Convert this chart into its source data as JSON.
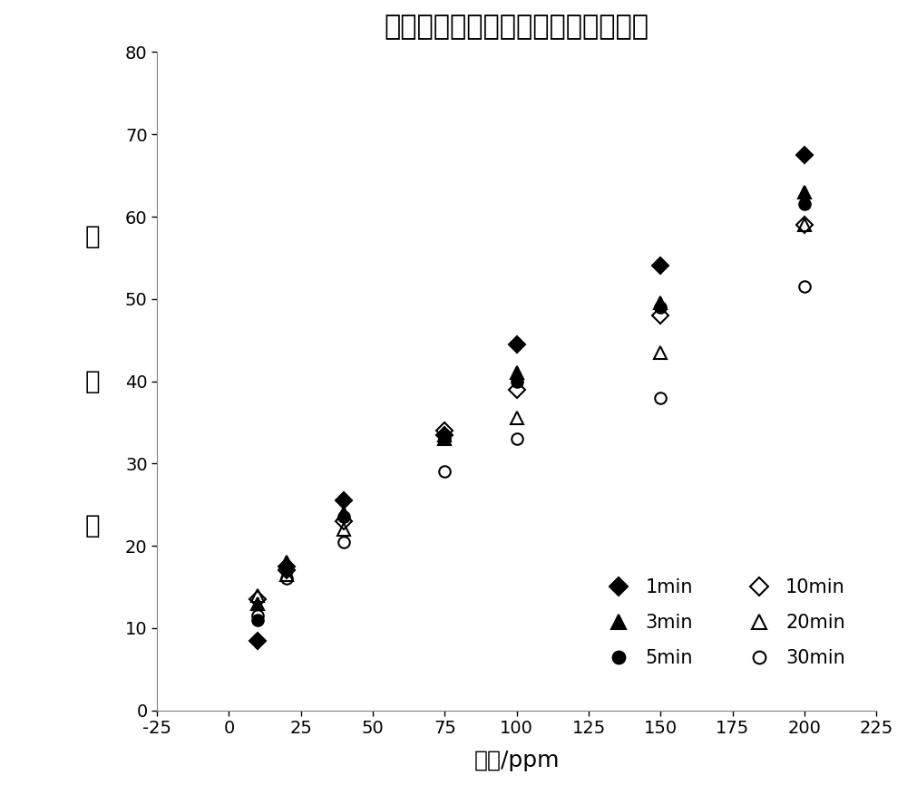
{
  "title": "不同显色时间下的标准溶液信号响应",
  "xlabel": "浓度/ppm",
  "ylabel": "灰度値",
  "xlim": [
    -25,
    225
  ],
  "ylim": [
    0,
    80
  ],
  "xticks": [
    -25,
    0,
    25,
    50,
    75,
    100,
    125,
    150,
    175,
    200,
    225
  ],
  "yticks": [
    0,
    10,
    20,
    30,
    40,
    50,
    60,
    70,
    80
  ],
  "series": [
    {
      "label": "1min",
      "marker": "D",
      "color": "#000000",
      "fillstyle": "full",
      "markersize": 9,
      "x": [
        10,
        20,
        40,
        75,
        100,
        150,
        200
      ],
      "y": [
        8.5,
        17.5,
        25.5,
        33.5,
        44.5,
        54,
        67.5
      ]
    },
    {
      "label": "3min",
      "marker": "^",
      "color": "#000000",
      "fillstyle": "full",
      "markersize": 10,
      "x": [
        10,
        20,
        40,
        75,
        100,
        150,
        200
      ],
      "y": [
        13,
        18,
        24,
        33,
        41,
        49.5,
        63
      ]
    },
    {
      "label": "5min",
      "marker": "o",
      "color": "#000000",
      "fillstyle": "full",
      "markersize": 9,
      "x": [
        10,
        20,
        40,
        75,
        100,
        150,
        200
      ],
      "y": [
        11,
        17,
        23.5,
        33,
        40,
        49,
        61.5
      ]
    },
    {
      "label": "10min",
      "marker": "D",
      "color": "#000000",
      "fillstyle": "none",
      "markersize": 9,
      "x": [
        10,
        20,
        40,
        75,
        100,
        150,
        200
      ],
      "y": [
        13.5,
        17,
        23,
        34,
        39,
        48,
        59
      ]
    },
    {
      "label": "20min",
      "marker": "^",
      "color": "#000000",
      "fillstyle": "none",
      "markersize": 10,
      "x": [
        10,
        20,
        40,
        75,
        100,
        150,
        200
      ],
      "y": [
        14,
        16.5,
        22,
        33.5,
        35.5,
        43.5,
        59
      ]
    },
    {
      "label": "30min",
      "marker": "o",
      "color": "#000000",
      "fillstyle": "none",
      "markersize": 9,
      "x": [
        10,
        20,
        40,
        75,
        100,
        150,
        200
      ],
      "y": [
        11.5,
        16,
        20.5,
        29,
        33,
        38,
        51.5
      ]
    }
  ],
  "background_color": "#ffffff",
  "title_fontsize": 22,
  "axis_fontsize": 18,
  "tick_fontsize": 14,
  "legend_fontsize": 15
}
